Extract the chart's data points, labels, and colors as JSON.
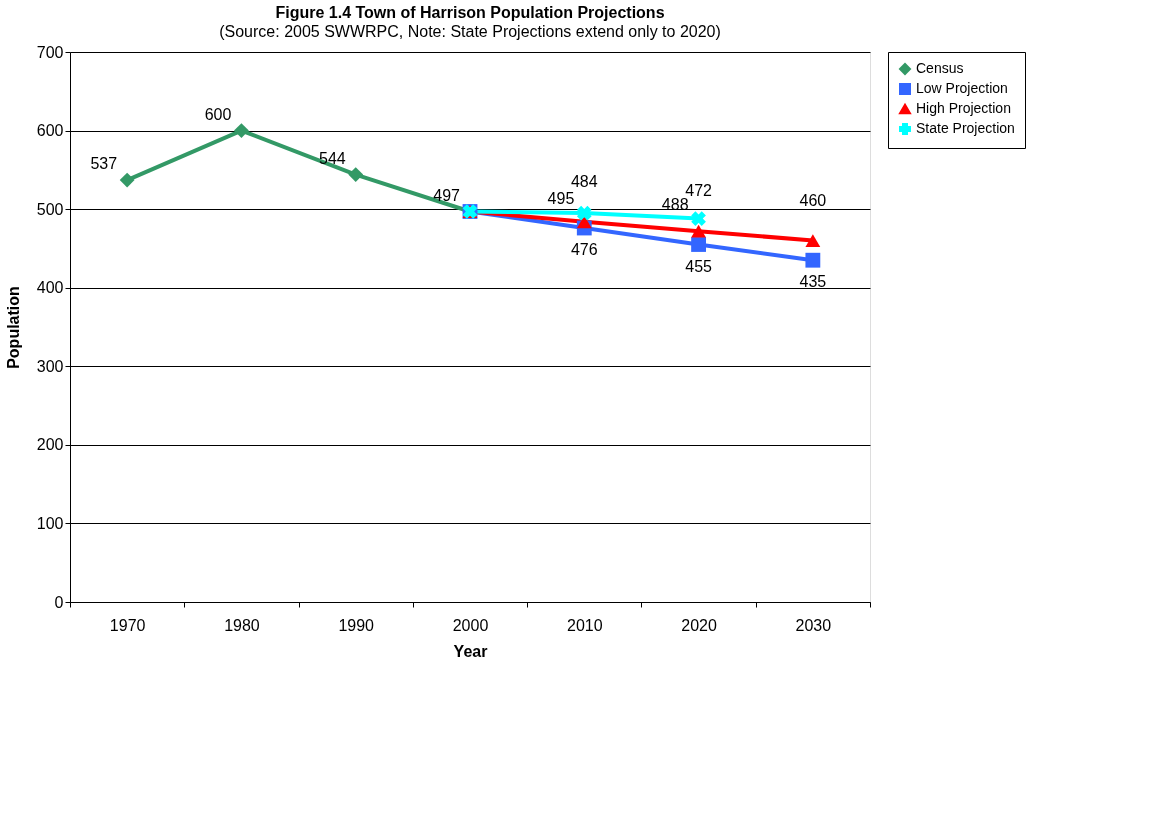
{
  "chart_data": {
    "type": "line",
    "title": "Figure 1.4 Town of Harrison Population Projections",
    "subtitle": "(Source:  2005 SWWRPC, Note:  State Projections extend only to 2020)",
    "xlabel": "Year",
    "ylabel": "Population",
    "categories": [
      "1970",
      "1980",
      "1990",
      "2000",
      "2010",
      "2020",
      "2030"
    ],
    "ylim": [
      0,
      700
    ],
    "yticks": [
      0,
      100,
      200,
      300,
      400,
      500,
      600,
      700
    ],
    "grid": "y",
    "legend": "right",
    "line_style": "solid",
    "series": [
      {
        "name": "Census",
        "color": "#339966",
        "marker": "diamond",
        "values": [
          537,
          600,
          544,
          497,
          null,
          null,
          null
        ],
        "value_labels": [
          "537",
          "600",
          "544",
          "497",
          null,
          null,
          null
        ]
      },
      {
        "name": "Low Projection",
        "color": "#3366ff",
        "marker": "square",
        "values": [
          null,
          null,
          null,
          497,
          476,
          455,
          435
        ],
        "value_labels": [
          null,
          null,
          null,
          null,
          "476",
          "455",
          "435"
        ]
      },
      {
        "name": "High Projection",
        "color": "#ff0000",
        "marker": "triangle",
        "values": [
          null,
          null,
          null,
          497,
          484,
          472,
          460
        ],
        "value_labels": [
          null,
          null,
          null,
          null,
          "484",
          "472",
          "460"
        ]
      },
      {
        "name": "State Projection",
        "color": "#00ffff",
        "marker": "cross",
        "values": [
          null,
          null,
          null,
          497,
          495,
          488,
          null
        ],
        "value_labels": [
          null,
          null,
          null,
          null,
          "495",
          "488",
          null
        ]
      }
    ]
  }
}
